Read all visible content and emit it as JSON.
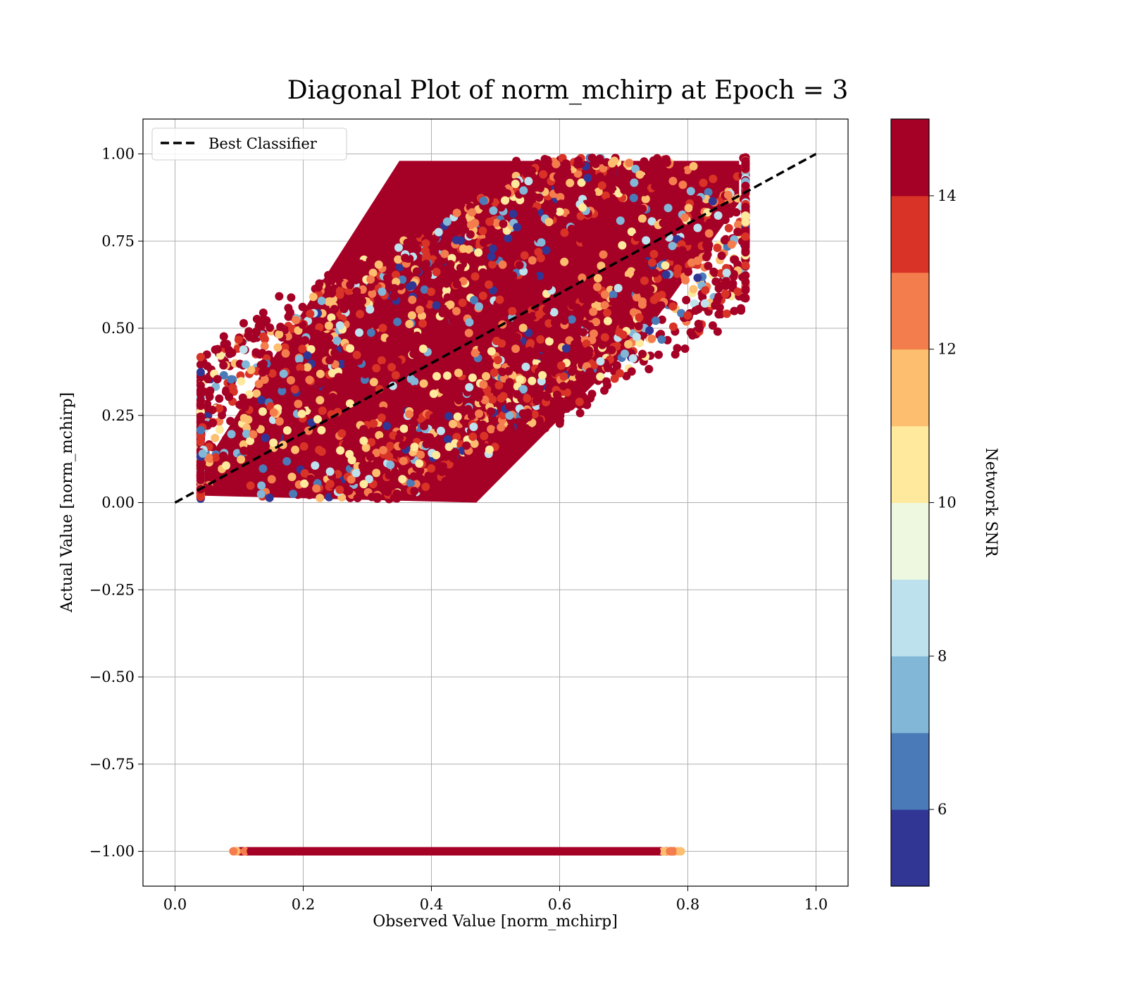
{
  "chart_data": {
    "type": "scatter",
    "title": "Diagonal Plot of norm_mchirp at Epoch = 3",
    "xlabel": "Observed Value [norm_mchirp]",
    "ylabel": "Actual Value [norm_mchirp]",
    "xlim": [
      -0.05,
      1.05
    ],
    "ylim": [
      -1.1,
      1.1
    ],
    "xticks": [
      "0.0",
      "0.2",
      "0.4",
      "0.6",
      "0.8",
      "1.0"
    ],
    "xtick_values": [
      0.0,
      0.2,
      0.4,
      0.6,
      0.8,
      1.0
    ],
    "yticks": [
      "1.00",
      "0.75",
      "0.50",
      "0.25",
      "0.00",
      "−0.25",
      "−0.50",
      "−0.75",
      "−1.00"
    ],
    "ytick_values": [
      1.0,
      0.75,
      0.5,
      0.25,
      0.0,
      -0.25,
      -0.5,
      -0.75,
      -1.0
    ],
    "grid": true,
    "legend": {
      "placement": "top-left",
      "entries": [
        {
          "label": "Best Classifier",
          "style": "dashed",
          "color": "#000000"
        }
      ]
    },
    "reference_line": {
      "label": "Best Classifier",
      "x": [
        0.0,
        1.0
      ],
      "y": [
        0.0,
        1.0
      ]
    },
    "colorbar": {
      "label": "Network SNR",
      "range": [
        5,
        15
      ],
      "ticks": [
        "6",
        "8",
        "10",
        "12",
        "14"
      ],
      "tick_values": [
        6,
        8,
        10,
        12,
        14
      ],
      "colors": [
        "#313695",
        "#4a7ab7",
        "#83b7d7",
        "#bde2ee",
        "#eef7df",
        "#fee99d",
        "#fdbf6f",
        "#f47d4d",
        "#d93327",
        "#a50026"
      ]
    },
    "point_clusters": [
      {
        "name": "main",
        "description": "dense band around diagonal",
        "x_range": [
          0.04,
          0.89
        ],
        "y_range": [
          0.0,
          1.0
        ],
        "dominant_snr": 15
      },
      {
        "name": "negative",
        "x_range": [
          0.08,
          0.79
        ],
        "y": -1.0,
        "dominant_snr": 15
      }
    ]
  }
}
